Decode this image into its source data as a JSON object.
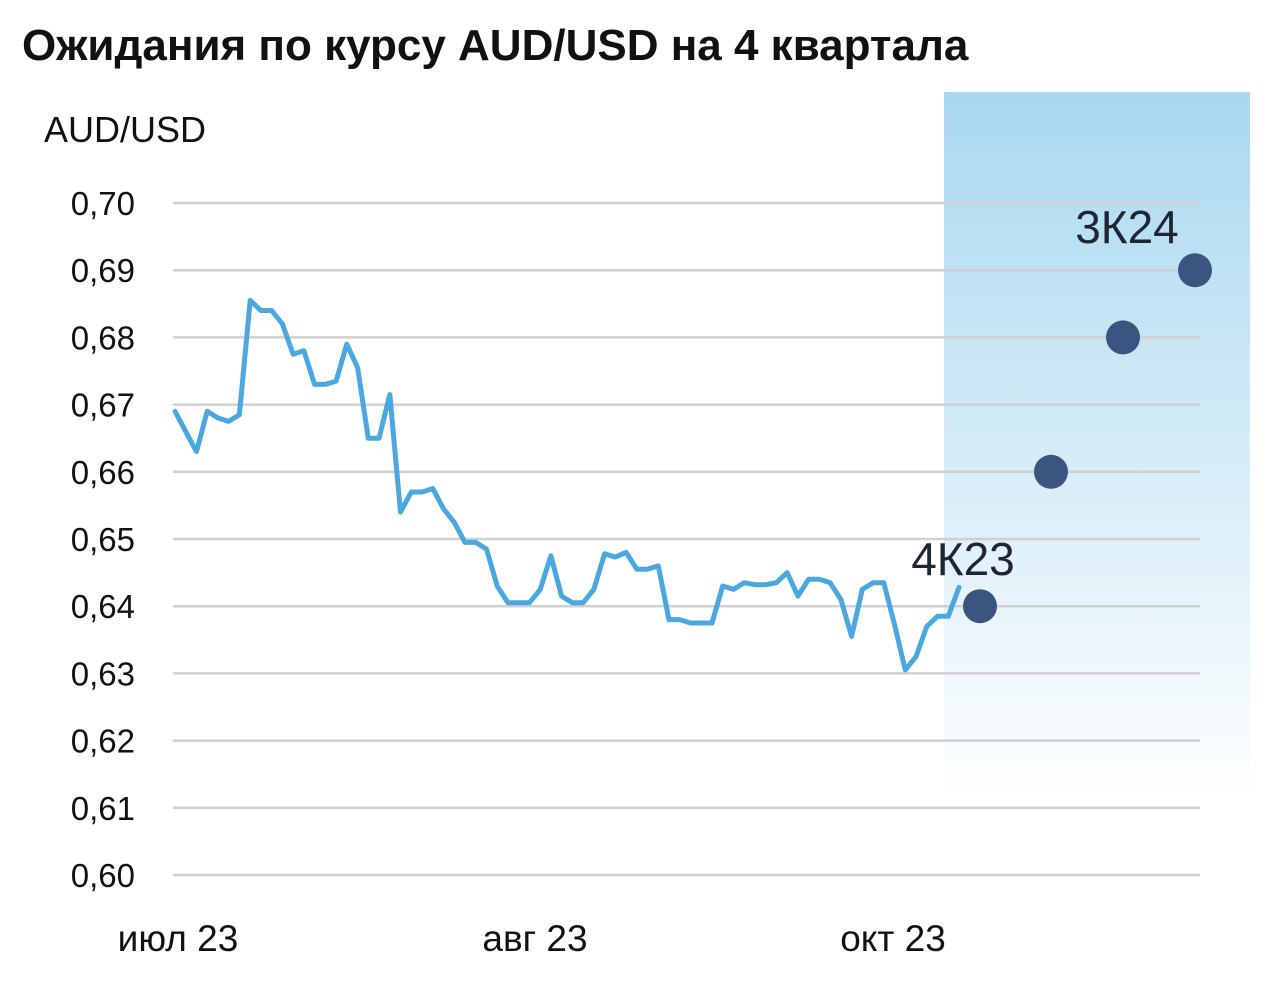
{
  "chart_data": {
    "type": "line",
    "title": "Ожидания по курсу AUD/USD на 4 квартала",
    "ylabel": "AUD/USD",
    "xlabel": "",
    "ylim": [
      0.6,
      0.7
    ],
    "yticks": [
      "0,70",
      "0,69",
      "0,68",
      "0,67",
      "0,66",
      "0,65",
      "0,64",
      "0,63",
      "0,62",
      "0,61",
      "0,60"
    ],
    "xticks": [
      "июл 23",
      "авг 23",
      "окт 23"
    ],
    "grid": true,
    "series": [
      {
        "values": [
          0.669,
          0.666,
          0.663,
          0.669,
          0.668,
          0.6675,
          0.6685,
          0.6855,
          0.684,
          0.684,
          0.682,
          0.6775,
          0.678,
          0.673,
          0.673,
          0.6735,
          0.679,
          0.6755,
          0.665,
          0.665,
          0.6715,
          0.654,
          0.657,
          0.657,
          0.6575,
          0.6545,
          0.6525,
          0.6495,
          0.6495,
          0.6485,
          0.643,
          0.6405,
          0.6405,
          0.6405,
          0.6425,
          0.6475,
          0.6415,
          0.6405,
          0.6405,
          0.6425,
          0.6478,
          0.6473,
          0.648,
          0.6455,
          0.6455,
          0.646,
          0.638,
          0.638,
          0.6375,
          0.6375,
          0.6375,
          0.643,
          0.6425,
          0.6435,
          0.6432,
          0.6432,
          0.6435,
          0.645,
          0.6415,
          0.644,
          0.644,
          0.6435,
          0.641,
          0.6355,
          0.6425,
          0.6435,
          0.6435,
          0.6372,
          0.6305,
          0.6325,
          0.637,
          0.6385,
          0.6385,
          0.6428
        ]
      }
    ],
    "forecast": [
      {
        "label": "4К23",
        "value": 0.64
      },
      {
        "label": "",
        "value": 0.66
      },
      {
        "label": "",
        "value": 0.68
      },
      {
        "label": "3К24",
        "value": 0.69
      }
    ],
    "colors": {
      "line": "#4aa7e0",
      "forecast_dot": "#3a5680",
      "forecast_band_top": "#a9d8f0",
      "forecast_band_bottom": "#ffffff",
      "grid": "#d0d0d0"
    }
  }
}
